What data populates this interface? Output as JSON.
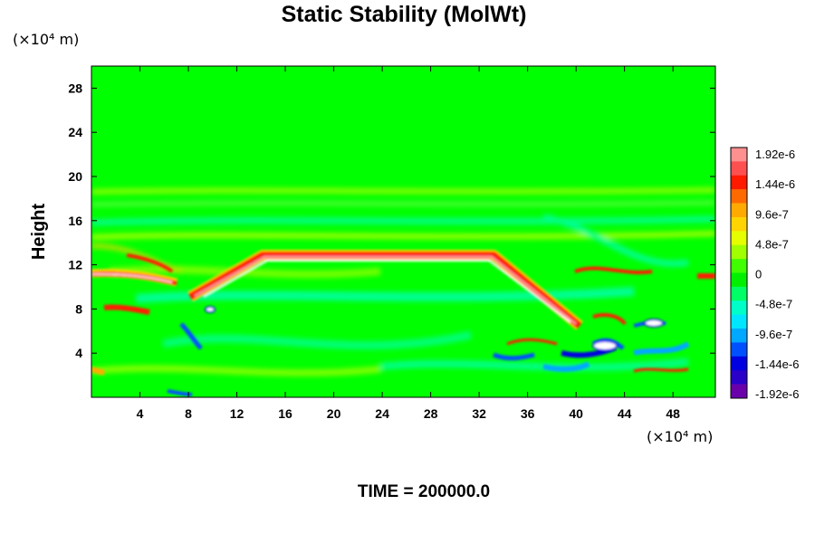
{
  "chart_data": {
    "type": "heatmap",
    "title": "Static Stability (MolWt)",
    "ylabel": "Height",
    "y_unit": "(×10⁴ m)",
    "x_unit": "(×10⁴ m)",
    "xlim": [
      0,
      51.5
    ],
    "ylim": [
      0,
      30
    ],
    "x_ticks": [
      "4",
      "8",
      "12",
      "16",
      "20",
      "24",
      "28",
      "32",
      "36",
      "40",
      "44",
      "48"
    ],
    "y_ticks": [
      "4",
      "8",
      "12",
      "16",
      "20",
      "24",
      "28"
    ],
    "colorbar": {
      "labels": [
        "1.92e-6",
        "1.44e-6",
        "9.6e-7",
        "4.8e-7",
        "0",
        "-4.8e-7",
        "-9.6e-7",
        "-1.44e-6",
        "-1.92e-6"
      ],
      "levels": [
        1.92e-06,
        1.44e-06,
        9.6e-07,
        4.8e-07,
        0,
        -4.8e-07,
        -9.6e-07,
        -1.44e-06,
        -1.92e-06
      ],
      "colors": [
        "#ff9090",
        "#ff5050",
        "#ff1a00",
        "#ff6a00",
        "#ffaa00",
        "#ffd400",
        "#e6ff00",
        "#a0ff00",
        "#40ff00",
        "#00f000",
        "#00ff66",
        "#00ffc8",
        "#00e6ff",
        "#00a8ff",
        "#0050ff",
        "#0000e0",
        "#2a00c8",
        "#6a00aa"
      ]
    },
    "field_description_values": {
      "background": 0,
      "upper_band_height": 13,
      "upper_band_x_range": [
        14,
        32
      ],
      "upper_band_value": 1.92e-06
    }
  },
  "footer": {
    "time_label": "TIME = 200000.0"
  }
}
